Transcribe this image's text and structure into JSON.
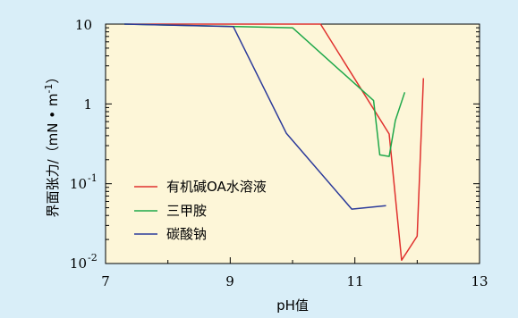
{
  "chart_data": {
    "type": "line",
    "xlabel": "pH值",
    "ylabel_main": "界面张力/（mN",
    "ylabel_unit": "m",
    "ylabel_exp": "-1",
    "ylabel_close": "）",
    "y_scale": "log",
    "xlim": [
      7,
      13
    ],
    "ylim": [
      0.01,
      10
    ],
    "x_ticks": [
      "7",
      "9",
      "11",
      "13"
    ],
    "y_ticks": [
      {
        "base": "10",
        "exp": "",
        "value": 10
      },
      {
        "base": "1",
        "exp": "",
        "value": 1
      },
      {
        "base": "10",
        "exp": "-1",
        "value": 0.1
      },
      {
        "base": "10",
        "exp": "-2",
        "value": 0.01
      }
    ],
    "legend_position": "bottom-left",
    "grid": false,
    "series": [
      {
        "name": "有机碱OA水溶液",
        "color": "#e0312e",
        "points": [
          [
            7.3,
            10
          ],
          [
            10.45,
            10
          ],
          [
            11.55,
            0.42
          ],
          [
            11.75,
            0.011
          ],
          [
            12.0,
            0.022
          ],
          [
            12.1,
            2.1
          ]
        ]
      },
      {
        "name": "三甲胺",
        "color": "#1fa84a",
        "points": [
          [
            7.3,
            10
          ],
          [
            10.0,
            9.0
          ],
          [
            11.3,
            1.1
          ],
          [
            11.4,
            0.23
          ],
          [
            11.55,
            0.22
          ],
          [
            11.65,
            0.62
          ],
          [
            11.8,
            1.4
          ]
        ]
      },
      {
        "name": "碳酸钠",
        "color": "#2b3a9a",
        "points": [
          [
            7.3,
            10
          ],
          [
            9.05,
            9.3
          ],
          [
            9.9,
            0.43
          ],
          [
            10.95,
            0.048
          ],
          [
            11.5,
            0.053
          ]
        ]
      }
    ]
  }
}
